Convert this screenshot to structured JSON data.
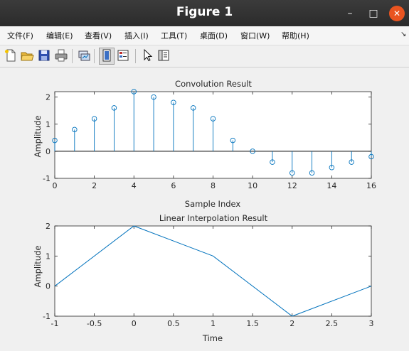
{
  "window": {
    "title": "Figure 1",
    "minimize": "–",
    "maximize": "□",
    "close": "✕"
  },
  "menu": [
    {
      "id": "file",
      "label": "文件(F)"
    },
    {
      "id": "edit",
      "label": "编辑(E)"
    },
    {
      "id": "view",
      "label": "查看(V)"
    },
    {
      "id": "insert",
      "label": "插入(I)"
    },
    {
      "id": "tools",
      "label": "工具(T)"
    },
    {
      "id": "desktop",
      "label": "桌面(D)"
    },
    {
      "id": "window",
      "label": "窗口(W)"
    },
    {
      "id": "help",
      "label": "帮助(H)"
    }
  ],
  "menu_overflow": "↘",
  "toolbar": [
    {
      "id": "new",
      "icon": "new-figure-icon"
    },
    {
      "id": "open",
      "icon": "open-folder-icon"
    },
    {
      "id": "save",
      "icon": "save-disk-icon"
    },
    {
      "id": "print",
      "icon": "print-icon"
    },
    {
      "id": "link",
      "icon": "link-plot-icon"
    },
    {
      "id": "hide-tools",
      "icon": "hide-plot-tools-icon"
    },
    {
      "id": "show-tools",
      "icon": "show-plot-tools-icon"
    },
    {
      "id": "pointer",
      "icon": "edit-pointer-icon"
    },
    {
      "id": "browser",
      "icon": "plot-browser-icon"
    }
  ],
  "colors": {
    "line": "#0072bd",
    "axes": "#262626",
    "plot_bg": "#ffffff",
    "figure_bg": "#f0f0f0"
  },
  "chart_data": [
    {
      "type": "stem",
      "title": "Convolution Result",
      "xlabel": "Sample Index",
      "ylabel": "Amplitude",
      "xlim": [
        0,
        16
      ],
      "ylim": [
        -1,
        2.2
      ],
      "xticks": [
        0,
        2,
        4,
        6,
        8,
        10,
        12,
        14,
        16
      ],
      "yticks": [
        -1,
        0,
        1,
        2
      ],
      "x": [
        0,
        1,
        2,
        3,
        4,
        5,
        6,
        7,
        8,
        9,
        10,
        11,
        12,
        13,
        14,
        15,
        16
      ],
      "y": [
        0.4,
        0.8,
        1.2,
        1.6,
        2.2,
        2.0,
        1.8,
        1.6,
        1.2,
        0.4,
        0.0,
        -0.4,
        -0.8,
        -0.8,
        -0.6,
        -0.4,
        -0.2
      ],
      "marker": "circle",
      "baseline": 0,
      "grid": false
    },
    {
      "type": "line",
      "title": "Linear Interpolation Result",
      "xlabel": "Time",
      "ylabel": "Amplitude",
      "xlim": [
        -1,
        3
      ],
      "ylim": [
        -1,
        2
      ],
      "xticks": [
        -1,
        -0.5,
        0,
        0.5,
        1,
        1.5,
        2,
        2.5,
        3
      ],
      "yticks": [
        -1,
        0,
        1,
        2
      ],
      "x": [
        -1,
        0,
        1,
        2,
        3
      ],
      "y": [
        0,
        2,
        1,
        -1,
        0
      ],
      "grid": false
    }
  ]
}
